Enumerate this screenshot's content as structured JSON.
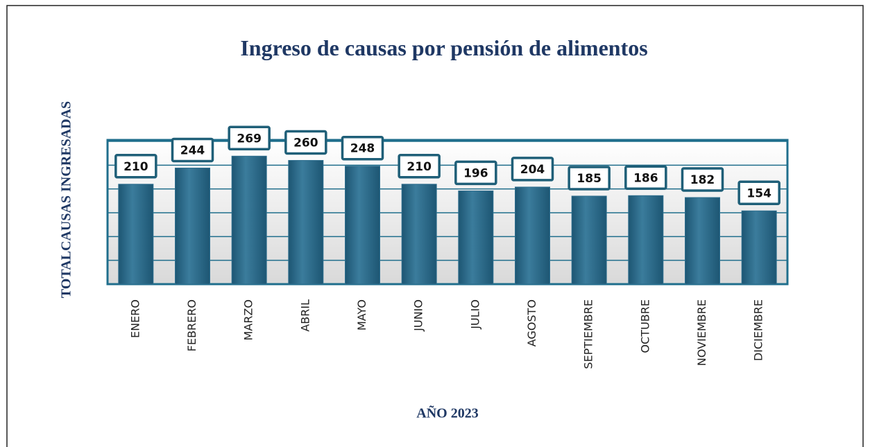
{
  "chart_data": {
    "type": "bar",
    "title": "Ingreso de causas por pensión de alimentos",
    "x_label": "AÑO 2023",
    "y_label": "TOTALCAUSAS INGRESADAS",
    "categories": [
      "ENERO",
      "FEBRERO",
      "MARZO",
      "ABRIL",
      "MAYO",
      "JUNIO",
      "JULIO",
      "AGOSTO",
      "SEPTIEMBRE",
      "OCTUBRE",
      "NOVIEMBRE",
      "DICIEMBRE"
    ],
    "values": [
      210,
      244,
      269,
      260,
      248,
      210,
      196,
      204,
      185,
      186,
      182,
      154
    ],
    "color": "#2f6f8f",
    "ylim": [
      0,
      300
    ],
    "yticks": [
      0,
      50,
      100,
      150,
      200,
      250,
      300
    ],
    "grid": true
  }
}
